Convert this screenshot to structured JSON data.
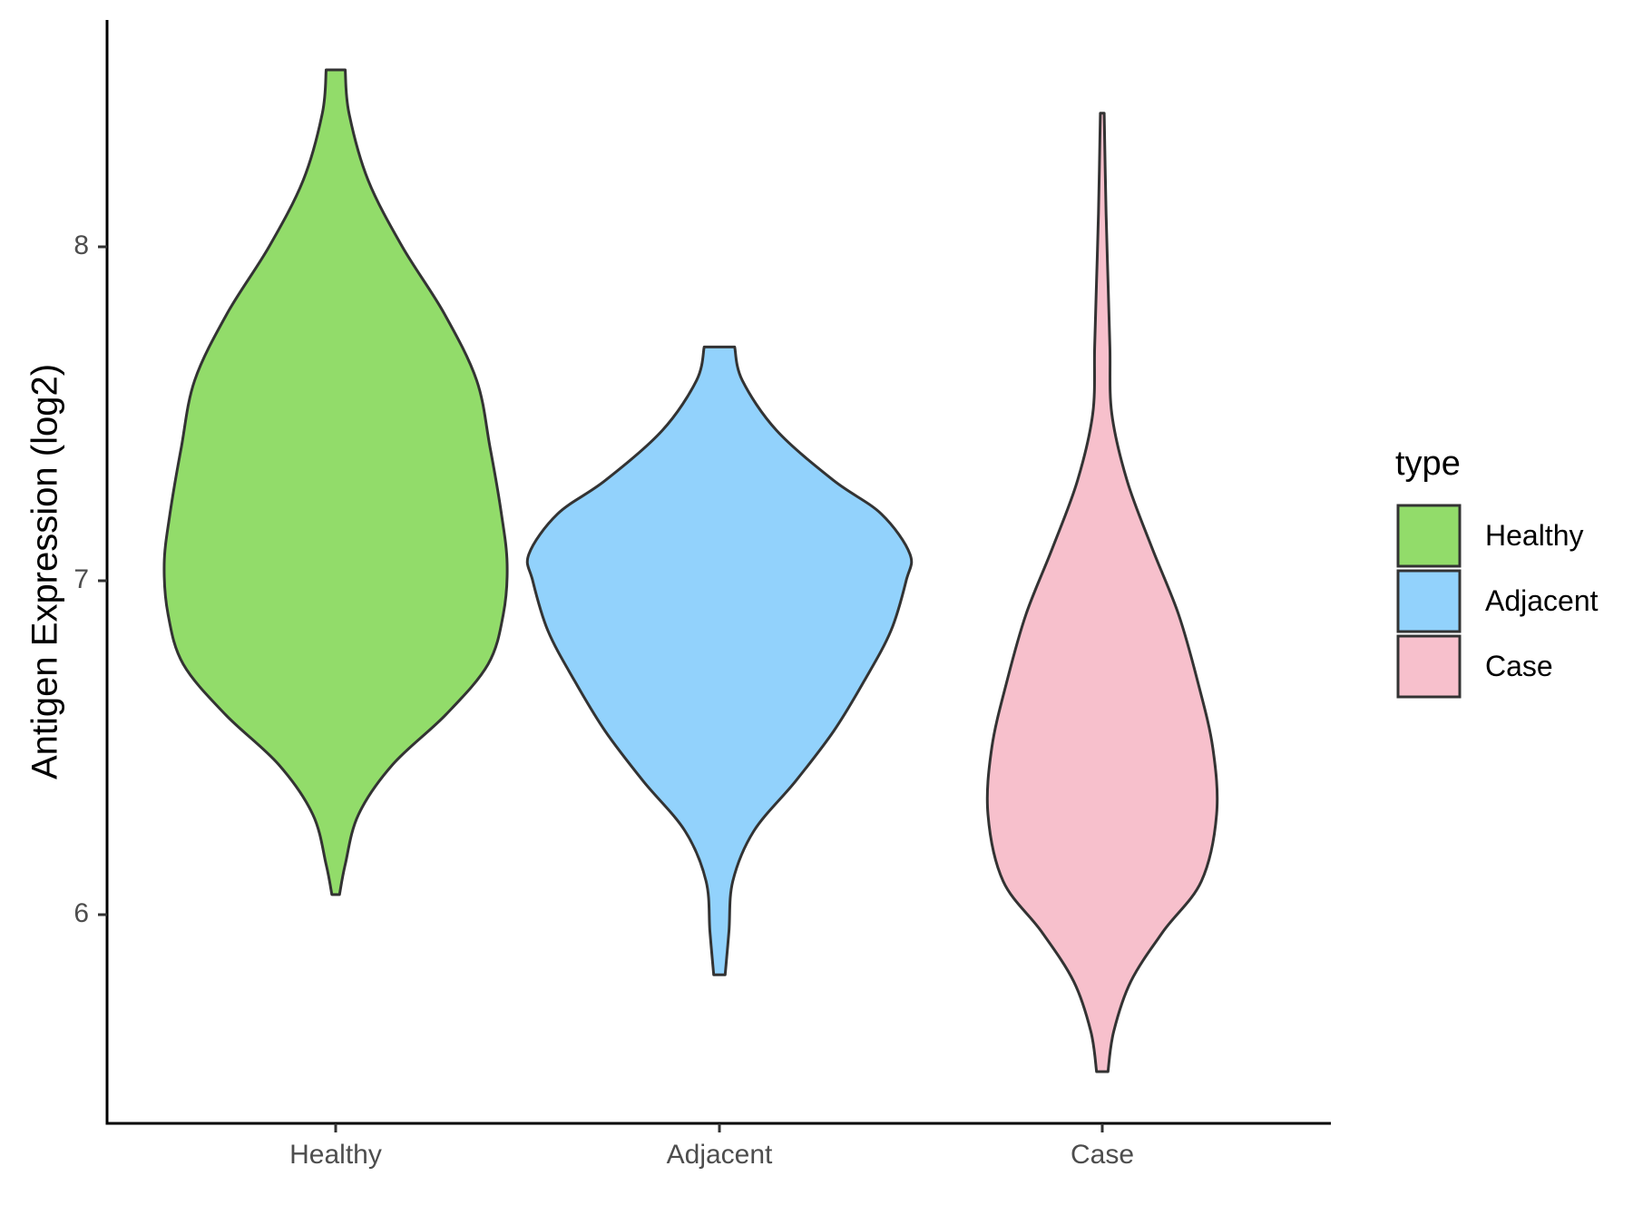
{
  "chart_data": {
    "type": "violin",
    "categories": [
      "Healthy",
      "Adjacent",
      "Case"
    ],
    "xlabel": "",
    "ylabel": "Antigen Expression (log2)",
    "ylim": [
      5.4,
      8.67
    ],
    "yticks": [
      6,
      7,
      8
    ],
    "grid": false,
    "legend": {
      "title": "type",
      "position": "right",
      "items": [
        "Healthy",
        "Adjacent",
        "Case"
      ]
    },
    "colors": {
      "Healthy": "#92dc6a",
      "Adjacent": "#92d2fc",
      "Case": "#f7c0cc",
      "outline": "#333333"
    },
    "series": [
      {
        "name": "Healthy",
        "min": 6.06,
        "max": 8.53,
        "density": [
          [
            6.06,
            0.02
          ],
          [
            6.15,
            0.05
          ],
          [
            6.3,
            0.12
          ],
          [
            6.45,
            0.3
          ],
          [
            6.6,
            0.58
          ],
          [
            6.75,
            0.8
          ],
          [
            6.9,
            0.88
          ],
          [
            7.05,
            0.9
          ],
          [
            7.2,
            0.87
          ],
          [
            7.4,
            0.81
          ],
          [
            7.6,
            0.74
          ],
          [
            7.8,
            0.57
          ],
          [
            8.0,
            0.35
          ],
          [
            8.2,
            0.17
          ],
          [
            8.4,
            0.07
          ],
          [
            8.53,
            0.05
          ]
        ]
      },
      {
        "name": "Adjacent",
        "min": 5.82,
        "max": 7.7,
        "density": [
          [
            5.82,
            0.03
          ],
          [
            5.95,
            0.05
          ],
          [
            6.1,
            0.07
          ],
          [
            6.25,
            0.18
          ],
          [
            6.4,
            0.4
          ],
          [
            6.55,
            0.6
          ],
          [
            6.7,
            0.76
          ],
          [
            6.85,
            0.9
          ],
          [
            7.0,
            0.98
          ],
          [
            7.08,
            1.0
          ],
          [
            7.2,
            0.85
          ],
          [
            7.3,
            0.6
          ],
          [
            7.45,
            0.3
          ],
          [
            7.6,
            0.12
          ],
          [
            7.7,
            0.08
          ]
        ]
      },
      {
        "name": "Case",
        "min": 5.53,
        "max": 8.4,
        "density": [
          [
            5.53,
            0.03
          ],
          [
            5.65,
            0.06
          ],
          [
            5.8,
            0.15
          ],
          [
            5.95,
            0.32
          ],
          [
            6.1,
            0.52
          ],
          [
            6.3,
            0.6
          ],
          [
            6.5,
            0.58
          ],
          [
            6.7,
            0.5
          ],
          [
            6.9,
            0.4
          ],
          [
            7.1,
            0.26
          ],
          [
            7.3,
            0.13
          ],
          [
            7.5,
            0.05
          ],
          [
            7.7,
            0.04
          ],
          [
            7.9,
            0.03
          ],
          [
            8.1,
            0.02
          ],
          [
            8.4,
            0.01
          ]
        ]
      }
    ]
  }
}
